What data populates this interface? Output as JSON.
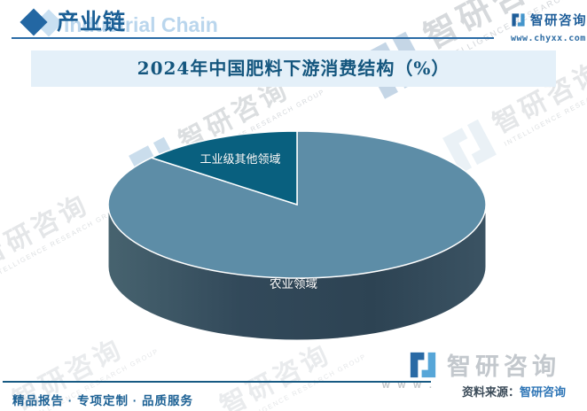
{
  "header": {
    "section_title": "产业链",
    "watermark_en": "Industrial Chain",
    "brand_name": "智研咨询",
    "brand_site": "www.chyxx.com"
  },
  "chart_data": {
    "type": "pie",
    "is_3d": true,
    "title": "2024年中国肥料下游消费结构（%）",
    "unit": "%",
    "categories": [
      "农业领域",
      "工业级其他领域"
    ],
    "values": [
      86,
      14
    ],
    "colors": [
      "#5d8da7",
      "#09607f"
    ],
    "start_angle_deg": -90,
    "direction": "clockwise",
    "label_position": "inside",
    "legend": "none"
  },
  "watermark": {
    "cn": "智研咨询",
    "en": "INTELLIGENCE RESEARCH GROUP",
    "www": "w w w ."
  },
  "brand_bottom": {
    "name": "智研咨询"
  },
  "footer": {
    "slogan": "精品报告 · 专项定制 · 品质服务",
    "source_label": "资料来源：",
    "source_value": "智研咨询"
  }
}
